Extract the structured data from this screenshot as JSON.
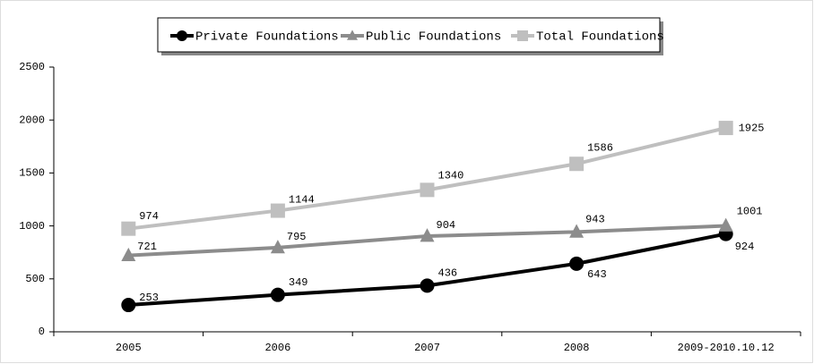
{
  "chart_data": {
    "type": "line",
    "categories": [
      "2005",
      "2006",
      "2007",
      "2008",
      "2009-2010.10.12"
    ],
    "series": [
      {
        "name": "Private Foundations",
        "color": "#000000",
        "marker": "circle",
        "values": [
          253,
          349,
          436,
          643,
          924
        ]
      },
      {
        "name": "Public Foundations",
        "color": "#8c8c8c",
        "marker": "triangle",
        "values": [
          721,
          795,
          904,
          943,
          1001
        ]
      },
      {
        "name": "Total Foundations",
        "color": "#bfbfbf",
        "marker": "square",
        "values": [
          974,
          1144,
          1340,
          1586,
          1925
        ]
      }
    ],
    "ylim": [
      0,
      2500
    ],
    "yticks": [
      0,
      500,
      1000,
      1500,
      2000,
      2500
    ],
    "grid": false,
    "legend": "top"
  }
}
